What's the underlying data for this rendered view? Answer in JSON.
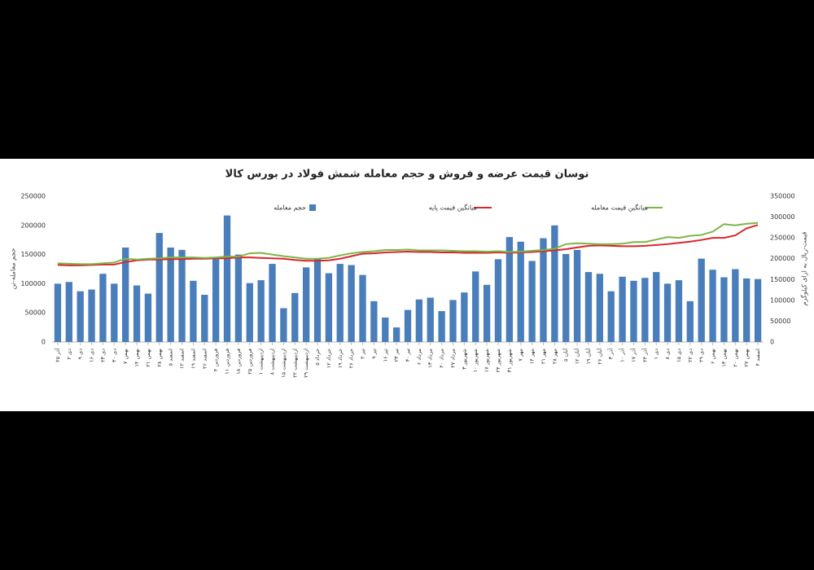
{
  "chart_data": {
    "type": "bar_line",
    "title": "نوسان قیمت عرضه و فروش و حجم معامله شمش فولاد در بورس کالا",
    "ylabel": "حجم معامله-تن",
    "y2label": "قیمت-ریال به ازای کیلوگرم",
    "categories": [
      "۲۵ آذر",
      "۲ دی",
      "۹ دی",
      "۱۶ دی",
      "۲۳ دی",
      "۳۰ دی",
      "۷ بهمن",
      "۱۴ بهمن",
      "۲۱ بهمن",
      "۲۸ بهمن",
      "۵ اسفند",
      "۱۲ اسفند",
      "۱۹ اسفند",
      "۲۶ اسفند",
      "۴ فروردین",
      "۱۱ فروردین",
      "۱۸ فروردین",
      "۲۵ فروردین",
      "۱ اردیبهشت",
      "۸ اردیبهشت",
      "۱۵ اردیبهشت",
      "۲۲ اردیبهشت",
      "۲۹ اردیبهشت",
      "۵ خرداد",
      "۱۲ خرداد",
      "۱۹ خرداد",
      "۲۶ خرداد",
      "۲ تیر",
      "۹ تیر",
      "۱۶ تیر",
      "۲۳ تیر",
      "۳۰ تیر",
      "۶ مرداد",
      "۱۳ مرداد",
      "۲۰ مرداد",
      "۲۷ مرداد",
      "۳ شهریور",
      "۱۰ شهریور",
      "۱۷ شهریور",
      "۲۴ شهریور",
      "۳۱ شهریور",
      "۷ مهر",
      "۱۴ مهر",
      "۲۱ مهر",
      "۲۸ مهر",
      "۵ آبان",
      "۱۲ آبان",
      "۱۹ آبان",
      "۲۶ آبان",
      "۳ آذر",
      "۱۰ آذر",
      "۱۷ آذر",
      "۲۴ آذر",
      "۱ دی",
      "۸ دی",
      "۱۵ دی",
      "۲۲ دی",
      "۲۹ دی",
      "۶ بهمن",
      "۱۳ بهمن",
      "۲۰ بهمن",
      "۲۷ بهمن",
      "۴ اسفند"
    ],
    "series": [
      {
        "name": "حجم معامله",
        "kind": "bar",
        "color": "#4a7ebb",
        "values": [
          100000,
          103000,
          87000,
          90000,
          117000,
          100000,
          162000,
          97000,
          83000,
          187000,
          162000,
          158000,
          105000,
          81000,
          146000,
          217000,
          150000,
          101000,
          106000,
          134000,
          58000,
          84000,
          128000,
          143000,
          118000,
          134000,
          132000,
          115000,
          70000,
          42000,
          25000,
          55000,
          73000,
          76000,
          53000,
          72000,
          85000,
          121000,
          98000,
          142000,
          180000,
          172000,
          139000,
          178000,
          200000,
          151000,
          158000,
          120000,
          117000,
          87000,
          112000,
          105000,
          110000,
          120000,
          100000,
          106000,
          70000,
          143000,
          124000,
          111000,
          125000,
          109000,
          108000
        ]
      },
      {
        "name": "میانگین قیمت پایه",
        "kind": "line",
        "axis": "y2",
        "color": "#d9262b",
        "values": [
          185000,
          184000,
          184000,
          185000,
          186000,
          186000,
          192000,
          196000,
          198000,
          198000,
          199000,
          199000,
          200000,
          200000,
          201000,
          201000,
          203000,
          203000,
          202000,
          201000,
          200000,
          197000,
          195000,
          195000,
          196000,
          200000,
          206000,
          212000,
          213000,
          215000,
          216000,
          217000,
          216000,
          216000,
          215000,
          215000,
          214000,
          214000,
          214000,
          215000,
          214000,
          215000,
          216000,
          218000,
          220000,
          223000,
          227000,
          231000,
          232000,
          231000,
          230000,
          230000,
          231000,
          233000,
          235000,
          238000,
          241000,
          245000,
          250000,
          250000,
          256000,
          273000,
          281000
        ]
      },
      {
        "name": "میانگین قیمت معامله",
        "kind": "line",
        "axis": "y2",
        "color": "#7ab648",
        "values": [
          189000,
          188000,
          187000,
          187000,
          189000,
          191000,
          200000,
          198000,
          200000,
          201000,
          203000,
          203000,
          203000,
          202000,
          203000,
          205000,
          205000,
          213000,
          214000,
          210000,
          206000,
          203000,
          200000,
          200000,
          202000,
          208000,
          213000,
          216000,
          218000,
          221000,
          221000,
          222000,
          220000,
          220000,
          220000,
          219000,
          218000,
          218000,
          217000,
          218000,
          216000,
          217000,
          219000,
          221000,
          224000,
          235000,
          237000,
          236000,
          235000,
          235000,
          236000,
          240000,
          240000,
          246000,
          252000,
          250000,
          255000,
          257000,
          265000,
          283000,
          280000,
          284000,
          286000
        ]
      }
    ],
    "ylim": [
      0,
      250000
    ],
    "yticks": [
      0,
      50000,
      100000,
      150000,
      200000,
      250000
    ],
    "y2lim": [
      0,
      350000
    ],
    "y2ticks": [
      0,
      50000,
      100000,
      150000,
      200000,
      250000,
      300000,
      350000
    ]
  }
}
